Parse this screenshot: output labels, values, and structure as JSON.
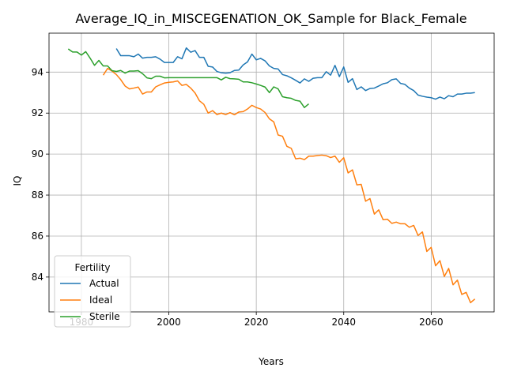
{
  "chart_data": {
    "type": "line",
    "title": "Average_IQ_in_MISCEGENATION_OK_Sample for Black_Female",
    "xlabel": "Years",
    "ylabel": "IQ",
    "xlim": [
      1972.6,
      2074.4
    ],
    "ylim": [
      82.3,
      95.9
    ],
    "x_ticks": [
      1980,
      2000,
      2020,
      2040,
      2060
    ],
    "y_ticks": [
      84,
      86,
      88,
      90,
      92,
      94
    ],
    "grid": true,
    "legend": {
      "title": "Fertility",
      "placement": "lower-left"
    },
    "series": [
      {
        "name": "Actual",
        "color": "#1f77b4",
        "points": [
          [
            1988,
            95.15
          ],
          [
            1989,
            94.8
          ],
          [
            1990,
            94.8
          ],
          [
            1991,
            94.8
          ],
          [
            1992,
            94.75
          ],
          [
            1993,
            94.88
          ],
          [
            1994,
            94.68
          ],
          [
            1995,
            94.72
          ],
          [
            1996,
            94.72
          ],
          [
            1997,
            94.75
          ],
          [
            1998,
            94.63
          ],
          [
            1999,
            94.47
          ],
          [
            2000,
            94.47
          ],
          [
            2001,
            94.47
          ],
          [
            2002,
            94.75
          ],
          [
            2003,
            94.65
          ],
          [
            2004,
            95.18
          ],
          [
            2005,
            94.97
          ],
          [
            2006,
            95.05
          ],
          [
            2007,
            94.72
          ],
          [
            2008,
            94.72
          ],
          [
            2009,
            94.28
          ],
          [
            2010,
            94.25
          ],
          [
            2011,
            94.03
          ],
          [
            2012,
            93.97
          ],
          [
            2013,
            93.95
          ],
          [
            2014,
            93.97
          ],
          [
            2015,
            94.08
          ],
          [
            2016,
            94.1
          ],
          [
            2017,
            94.35
          ],
          [
            2018,
            94.5
          ],
          [
            2019,
            94.88
          ],
          [
            2020,
            94.6
          ],
          [
            2021,
            94.67
          ],
          [
            2022,
            94.55
          ],
          [
            2023,
            94.3
          ],
          [
            2024,
            94.18
          ],
          [
            2025,
            94.15
          ],
          [
            2026,
            93.88
          ],
          [
            2027,
            93.82
          ],
          [
            2028,
            93.72
          ],
          [
            2029,
            93.6
          ],
          [
            2030,
            93.47
          ],
          [
            2031,
            93.67
          ],
          [
            2032,
            93.55
          ],
          [
            2033,
            93.7
          ],
          [
            2034,
            93.73
          ],
          [
            2035,
            93.73
          ],
          [
            2036,
            94.02
          ],
          [
            2037,
            93.85
          ],
          [
            2038,
            94.33
          ],
          [
            2039,
            93.78
          ],
          [
            2040,
            94.25
          ],
          [
            2041,
            93.5
          ],
          [
            2042,
            93.68
          ],
          [
            2043,
            93.15
          ],
          [
            2044,
            93.28
          ],
          [
            2045,
            93.1
          ],
          [
            2046,
            93.2
          ],
          [
            2047,
            93.22
          ],
          [
            2048,
            93.32
          ],
          [
            2049,
            93.43
          ],
          [
            2050,
            93.48
          ],
          [
            2051,
            93.63
          ],
          [
            2052,
            93.67
          ],
          [
            2053,
            93.45
          ],
          [
            2054,
            93.4
          ],
          [
            2055,
            93.22
          ],
          [
            2056,
            93.1
          ],
          [
            2057,
            92.88
          ],
          [
            2058,
            92.82
          ],
          [
            2059,
            92.78
          ],
          [
            2060,
            92.75
          ],
          [
            2061,
            92.68
          ],
          [
            2062,
            92.78
          ],
          [
            2063,
            92.7
          ],
          [
            2064,
            92.85
          ],
          [
            2065,
            92.8
          ],
          [
            2066,
            92.93
          ],
          [
            2067,
            92.93
          ],
          [
            2068,
            92.97
          ],
          [
            2069,
            92.97
          ],
          [
            2070,
            93.0
          ]
        ]
      },
      {
        "name": "Ideal",
        "color": "#ff7f0e",
        "points": [
          [
            1985,
            93.85
          ],
          [
            1986,
            94.18
          ],
          [
            1987,
            94.05
          ],
          [
            1988,
            93.88
          ],
          [
            1989,
            93.63
          ],
          [
            1990,
            93.32
          ],
          [
            1991,
            93.18
          ],
          [
            1992,
            93.22
          ],
          [
            1993,
            93.27
          ],
          [
            1994,
            92.93
          ],
          [
            1995,
            93.03
          ],
          [
            1996,
            93.03
          ],
          [
            1997,
            93.28
          ],
          [
            1998,
            93.38
          ],
          [
            1999,
            93.47
          ],
          [
            2000,
            93.5
          ],
          [
            2001,
            93.52
          ],
          [
            2002,
            93.57
          ],
          [
            2003,
            93.35
          ],
          [
            2004,
            93.4
          ],
          [
            2005,
            93.22
          ],
          [
            2006,
            92.98
          ],
          [
            2007,
            92.6
          ],
          [
            2008,
            92.43
          ],
          [
            2009,
            92.0
          ],
          [
            2010,
            92.12
          ],
          [
            2011,
            91.93
          ],
          [
            2012,
            92.0
          ],
          [
            2013,
            91.93
          ],
          [
            2014,
            92.02
          ],
          [
            2015,
            91.92
          ],
          [
            2016,
            92.05
          ],
          [
            2017,
            92.07
          ],
          [
            2018,
            92.2
          ],
          [
            2019,
            92.38
          ],
          [
            2020,
            92.27
          ],
          [
            2021,
            92.2
          ],
          [
            2022,
            92.03
          ],
          [
            2023,
            91.72
          ],
          [
            2024,
            91.57
          ],
          [
            2025,
            90.93
          ],
          [
            2026,
            90.87
          ],
          [
            2027,
            90.38
          ],
          [
            2028,
            90.28
          ],
          [
            2029,
            89.77
          ],
          [
            2030,
            89.8
          ],
          [
            2031,
            89.73
          ],
          [
            2032,
            89.9
          ],
          [
            2033,
            89.9
          ],
          [
            2034,
            89.93
          ],
          [
            2035,
            89.95
          ],
          [
            2036,
            89.92
          ],
          [
            2037,
            89.83
          ],
          [
            2038,
            89.9
          ],
          [
            2039,
            89.6
          ],
          [
            2040,
            89.82
          ],
          [
            2041,
            89.08
          ],
          [
            2042,
            89.23
          ],
          [
            2043,
            88.5
          ],
          [
            2044,
            88.52
          ],
          [
            2045,
            87.7
          ],
          [
            2046,
            87.83
          ],
          [
            2047,
            87.07
          ],
          [
            2048,
            87.28
          ],
          [
            2049,
            86.8
          ],
          [
            2050,
            86.82
          ],
          [
            2051,
            86.62
          ],
          [
            2052,
            86.68
          ],
          [
            2053,
            86.6
          ],
          [
            2054,
            86.6
          ],
          [
            2055,
            86.43
          ],
          [
            2056,
            86.52
          ],
          [
            2057,
            86.03
          ],
          [
            2058,
            86.2
          ],
          [
            2059,
            85.25
          ],
          [
            2060,
            85.45
          ],
          [
            2061,
            84.55
          ],
          [
            2062,
            84.8
          ],
          [
            2063,
            84.03
          ],
          [
            2064,
            84.42
          ],
          [
            2065,
            83.62
          ],
          [
            2066,
            83.85
          ],
          [
            2067,
            83.15
          ],
          [
            2068,
            83.25
          ],
          [
            2069,
            82.75
          ],
          [
            2070,
            82.93
          ]
        ]
      },
      {
        "name": "Sterile",
        "color": "#2ca02c",
        "points": [
          [
            1977,
            95.13
          ],
          [
            1978,
            94.98
          ],
          [
            1979,
            94.98
          ],
          [
            1980,
            94.83
          ],
          [
            1981,
            95.0
          ],
          [
            1982,
            94.68
          ],
          [
            1983,
            94.33
          ],
          [
            1984,
            94.57
          ],
          [
            1985,
            94.3
          ],
          [
            1986,
            94.3
          ],
          [
            1987,
            94.07
          ],
          [
            1988,
            94.03
          ],
          [
            1989,
            94.08
          ],
          [
            1990,
            93.95
          ],
          [
            1991,
            94.05
          ],
          [
            1992,
            94.05
          ],
          [
            1993,
            94.07
          ],
          [
            1994,
            93.92
          ],
          [
            1995,
            93.72
          ],
          [
            1996,
            93.68
          ],
          [
            1997,
            93.8
          ],
          [
            1998,
            93.8
          ],
          [
            1999,
            93.72
          ],
          [
            2000,
            93.73
          ],
          [
            2001,
            93.73
          ],
          [
            2002,
            93.73
          ],
          [
            2003,
            93.73
          ],
          [
            2004,
            93.73
          ],
          [
            2005,
            93.73
          ],
          [
            2006,
            93.73
          ],
          [
            2007,
            93.73
          ],
          [
            2008,
            93.73
          ],
          [
            2009,
            93.73
          ],
          [
            2010,
            93.73
          ],
          [
            2011,
            93.73
          ],
          [
            2012,
            93.62
          ],
          [
            2013,
            93.75
          ],
          [
            2014,
            93.68
          ],
          [
            2015,
            93.67
          ],
          [
            2016,
            93.65
          ],
          [
            2017,
            93.52
          ],
          [
            2018,
            93.52
          ],
          [
            2019,
            93.48
          ],
          [
            2020,
            93.42
          ],
          [
            2021,
            93.35
          ],
          [
            2022,
            93.27
          ],
          [
            2023,
            93.0
          ],
          [
            2024,
            93.28
          ],
          [
            2025,
            93.18
          ],
          [
            2026,
            92.8
          ],
          [
            2027,
            92.75
          ],
          [
            2028,
            92.72
          ],
          [
            2029,
            92.62
          ],
          [
            2030,
            92.58
          ],
          [
            2031,
            92.27
          ],
          [
            2032,
            92.45
          ]
        ]
      }
    ]
  }
}
